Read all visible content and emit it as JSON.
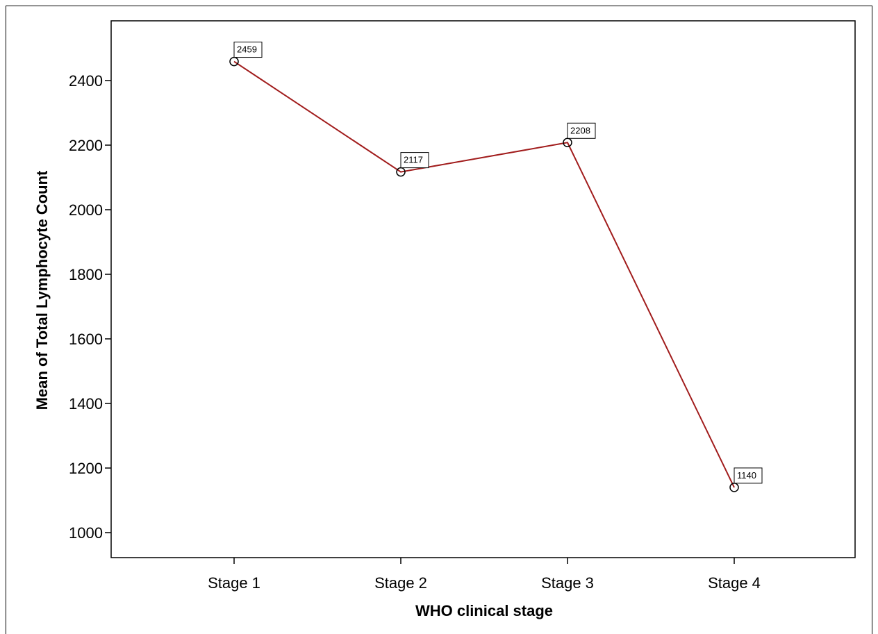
{
  "chart_data": {
    "type": "line",
    "categories": [
      "Stage 1",
      "Stage 2",
      "Stage 3",
      "Stage 4"
    ],
    "values": [
      2459,
      2117,
      2208,
      1140
    ],
    "data_labels": [
      "2459",
      "2117",
      "2208",
      "1140"
    ],
    "xlabel": "WHO clinical stage",
    "ylabel": "Mean of Total Lymphocyte Count",
    "yticks": [
      1000,
      1200,
      1400,
      1600,
      1800,
      2000,
      2200,
      2400
    ],
    "ylim": [
      920,
      2550
    ],
    "grid": false,
    "line_color": "#a11c1c",
    "marker": "open-circle"
  }
}
